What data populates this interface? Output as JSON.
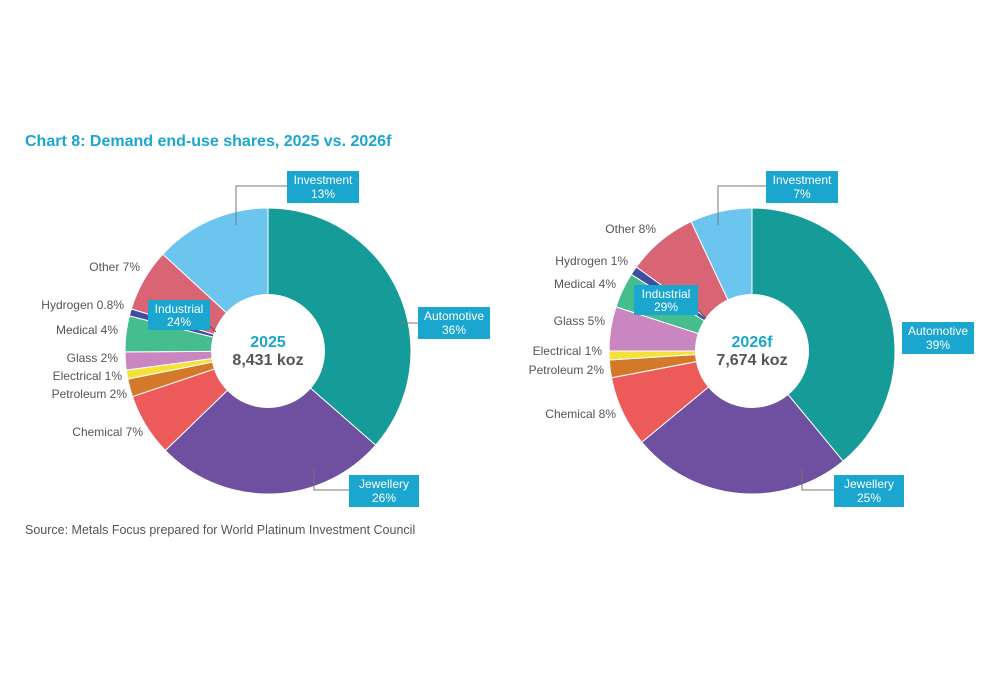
{
  "title": "Chart 8: Demand end-use shares, 2025 vs. 2026f",
  "source": "Source: Metals Focus prepared for World Platinum Investment Council",
  "colors": {
    "accent": "#1aa6cf",
    "Automotive": "#159b98",
    "Jewellery": "#6e4fa0",
    "Chemical": "#ec5b5a",
    "Petroleum": "#d4782a",
    "Electrical": "#f4e23a",
    "Glass": "#c986c0",
    "Medical": "#45bd8d",
    "Hydrogen": "#3f4ea3",
    "Industrial": "#2a84c9",
    "Other": "#d96474",
    "Investment": "#6bc5ee"
  },
  "chart_data": [
    {
      "type": "pie",
      "subtype": "donut",
      "center_label": "2025",
      "center_total": "8,431 koz",
      "slices": [
        {
          "name": "Automotive",
          "value": 36,
          "label": "36%"
        },
        {
          "name": "Jewellery",
          "value": 26,
          "label": "26%"
        },
        {
          "name": "Chemical",
          "value": 7,
          "label": "7%"
        },
        {
          "name": "Petroleum",
          "value": 2,
          "label": "2%"
        },
        {
          "name": "Electrical",
          "value": 1,
          "label": "1%"
        },
        {
          "name": "Glass",
          "value": 2,
          "label": "2%"
        },
        {
          "name": "Medical",
          "value": 4,
          "label": "4%"
        },
        {
          "name": "Hydrogen",
          "value": 0.8,
          "label": "0.8%"
        },
        {
          "name": "Other",
          "value": 7,
          "label": "7%"
        },
        {
          "name": "Investment",
          "value": 13,
          "label": "13%"
        }
      ],
      "industrial_group": {
        "name": "Industrial",
        "label": "24%"
      }
    },
    {
      "type": "pie",
      "subtype": "donut",
      "center_label": "2026f",
      "center_total": "7,674 koz",
      "slices": [
        {
          "name": "Automotive",
          "value": 39,
          "label": "39%"
        },
        {
          "name": "Jewellery",
          "value": 25,
          "label": "25%"
        },
        {
          "name": "Chemical",
          "value": 8,
          "label": "8%"
        },
        {
          "name": "Petroleum",
          "value": 2,
          "label": "2%"
        },
        {
          "name": "Electrical",
          "value": 1,
          "label": "1%"
        },
        {
          "name": "Glass",
          "value": 5,
          "label": "5%"
        },
        {
          "name": "Medical",
          "value": 4,
          "label": "4%"
        },
        {
          "name": "Hydrogen",
          "value": 1,
          "label": "1%"
        },
        {
          "name": "Other",
          "value": 8,
          "label": "8%"
        },
        {
          "name": "Investment",
          "value": 7,
          "label": "7%"
        }
      ],
      "industrial_group": {
        "name": "Industrial",
        "label": "29%"
      }
    }
  ]
}
